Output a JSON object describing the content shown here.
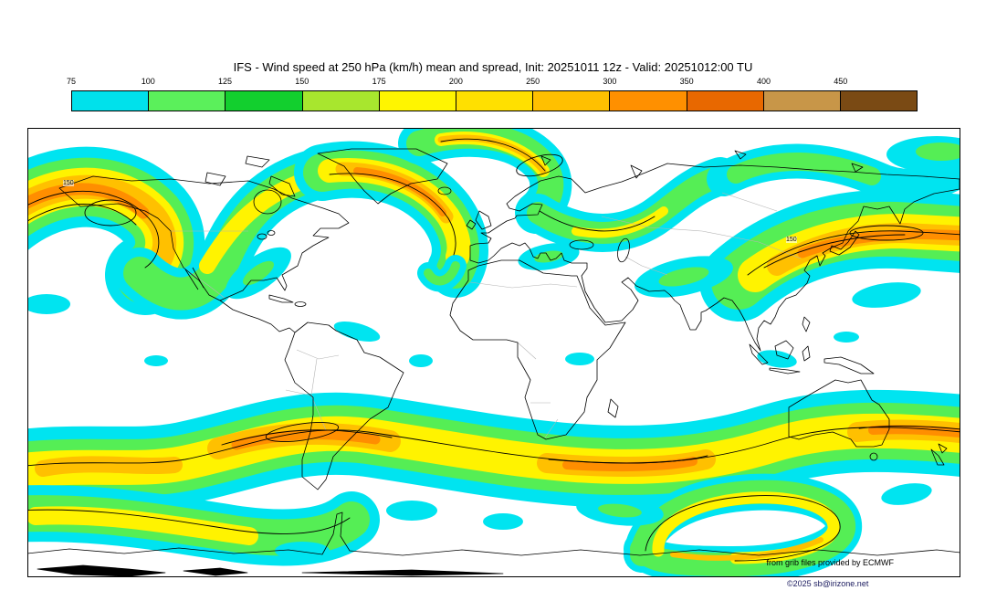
{
  "title": "IFS - Wind speed at 250 hPa (km/h) mean and spread, Init: 20251011 12z - Valid: 20251012:00 TU",
  "colorbar": {
    "ticks": [
      "75",
      "100",
      "125",
      "150",
      "175",
      "200",
      "250",
      "300",
      "350",
      "400",
      "450"
    ],
    "colors": [
      "#00E1EB",
      "#5BF05B",
      "#12CF2E",
      "#A8E62E",
      "#FFF500",
      "#FFE000",
      "#FFC000",
      "#FF9000",
      "#E86800",
      "#C89648",
      "#7A4A14"
    ]
  },
  "map": {
    "contour_labels": [
      "150",
      "150"
    ],
    "attribution": "from grib files provided by ECMWF",
    "copyright": "©2025 sb@irizone.net"
  }
}
